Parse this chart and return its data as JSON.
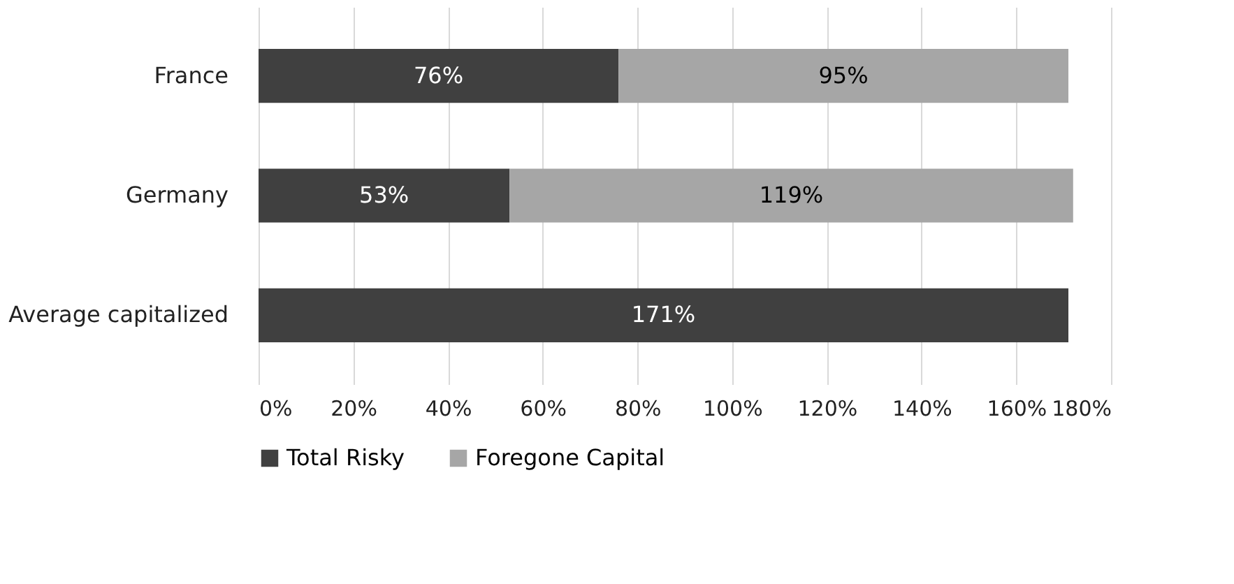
{
  "chart_data": {
    "type": "bar",
    "orientation": "horizontal",
    "stacked": true,
    "categories": [
      "France",
      "Germany",
      "Average capitalized"
    ],
    "series": [
      {
        "name": "Total Risky",
        "color": "#404040",
        "values": [
          76,
          53,
          171
        ],
        "value_labels": [
          "76%",
          "53%",
          "171%"
        ]
      },
      {
        "name": "Foregone Capital",
        "color": "#a6a6a6",
        "values": [
          95,
          119,
          null
        ],
        "value_labels": [
          "95%",
          "119%",
          null
        ]
      }
    ],
    "xlim": [
      0,
      180
    ],
    "xticks": [
      {
        "value": 0,
        "label": "0%"
      },
      {
        "value": 20,
        "label": "20%"
      },
      {
        "value": 40,
        "label": "40%"
      },
      {
        "value": 60,
        "label": "60%"
      },
      {
        "value": 80,
        "label": "80%"
      },
      {
        "value": 100,
        "label": "100%"
      },
      {
        "value": 120,
        "label": "120%"
      },
      {
        "value": 140,
        "label": "140%"
      },
      {
        "value": 160,
        "label": "160%"
      },
      {
        "value": 180,
        "label": "180%"
      }
    ],
    "grid": "x",
    "legend": "bottom"
  }
}
